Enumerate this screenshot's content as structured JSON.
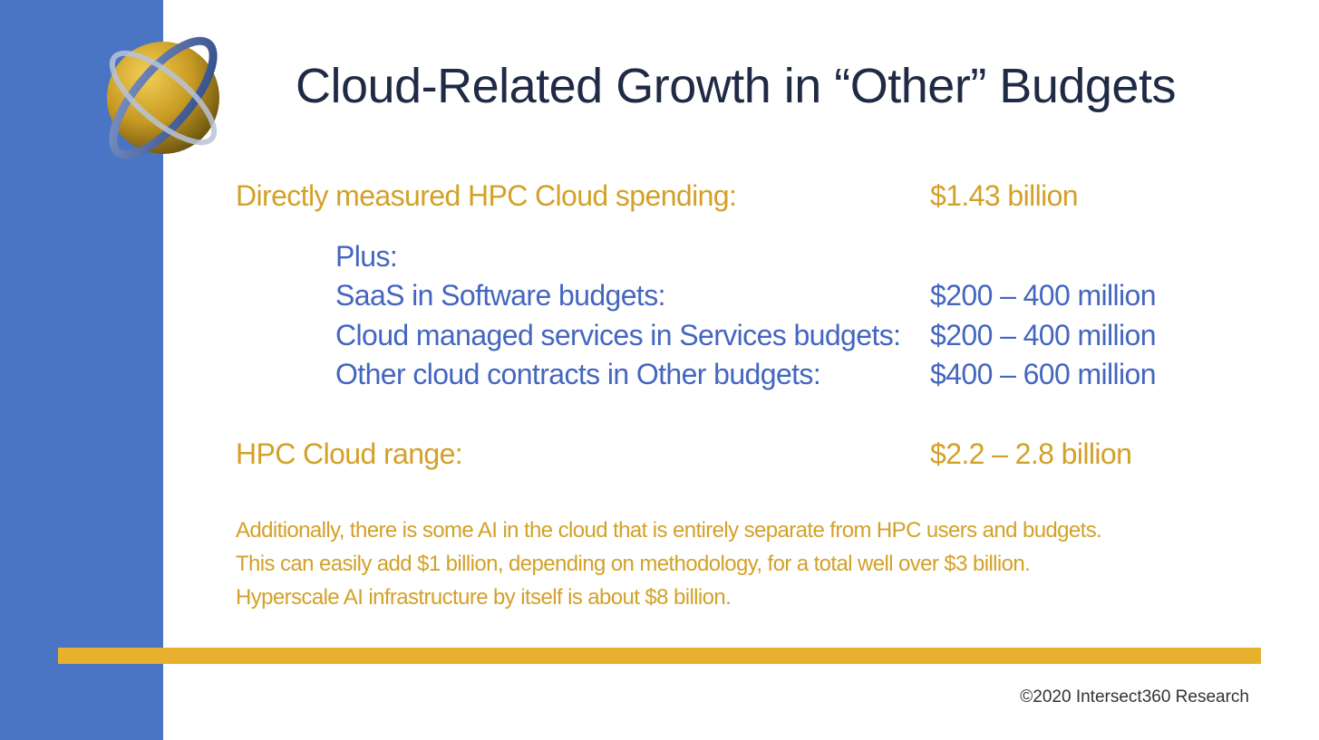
{
  "slide": {
    "title": "Cloud-Related Growth in “Other” Budgets",
    "direct": {
      "label": "Directly measured HPC Cloud spending:",
      "value": "$1.43 billion"
    },
    "plus_label": "Plus:",
    "items": [
      {
        "label": "SaaS in Software budgets:",
        "value": "$200 – 400 million"
      },
      {
        "label": "Cloud managed services in Services budgets:",
        "value": "$200 – 400 million"
      },
      {
        "label": "Other cloud contracts in Other budgets:",
        "value": "$400 – 600 million"
      }
    ],
    "range": {
      "label": "HPC Cloud range:",
      "value": "$2.2 – 2.8 billion"
    },
    "notes": [
      "Additionally, there is some AI in the cloud that is entirely separate from HPC users and budgets.",
      "This can easily add $1 billion, depending on methodology, for a total well over $3 billion.",
      "Hyperscale AI infrastructure by itself is about $8 billion."
    ],
    "copyright": "©2020 Intersect360 Research"
  },
  "colors": {
    "sidebar": "#4a74c4",
    "gold": "#d3a128",
    "blue": "#4466c0",
    "divider": "#e7b12e",
    "title": "#1f2a44"
  },
  "icons": {
    "logo": "globe-orbit-logo"
  }
}
